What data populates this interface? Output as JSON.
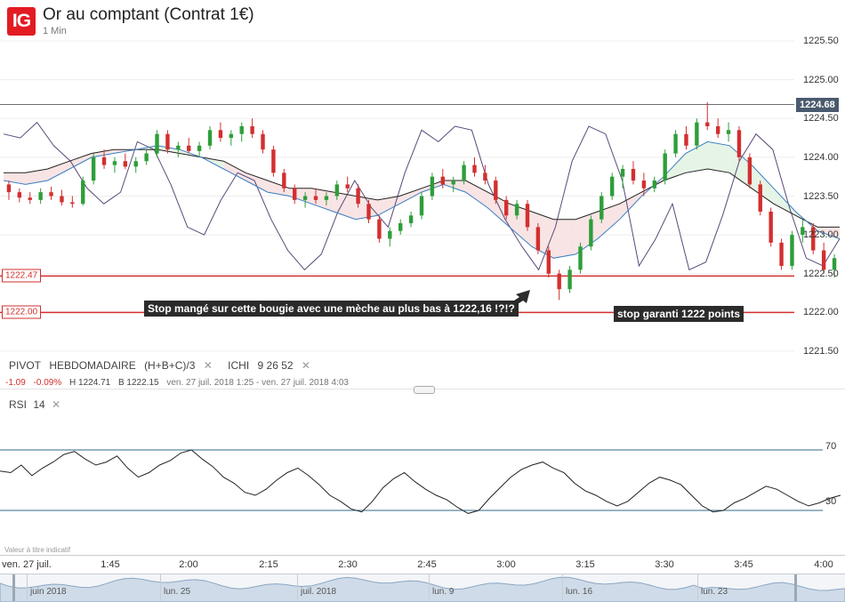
{
  "header": {
    "logo": "IG",
    "title": "Or au comptant (Contrat 1€)",
    "interval": "1 Min"
  },
  "price_axis": {
    "ticks": [
      {
        "label": "1225.50",
        "value": 1225.5
      },
      {
        "label": "1225.00",
        "value": 1225.0
      },
      {
        "label": "1224.50",
        "value": 1224.5
      },
      {
        "label": "1224.00",
        "value": 1224.0
      },
      {
        "label": "1223.50",
        "value": 1223.5
      },
      {
        "label": "1223.00",
        "value": 1223.0
      },
      {
        "label": "1222.50",
        "value": 1222.5
      },
      {
        "label": "1222.00",
        "value": 1222.0
      },
      {
        "label": "1221.50",
        "value": 1221.5
      }
    ],
    "current_price": "1224.68",
    "current_value": 1224.68
  },
  "levels": [
    {
      "label": "1222.47",
      "value": 1222.47,
      "color": "#d32f2f"
    },
    {
      "label": "1222.00",
      "value": 1222.0,
      "color": "#d32f2f"
    }
  ],
  "annotations": {
    "stop_note": "Stop mangé sur cette bougie avec une mèche au plus bas à 1222,16 !?!?",
    "guaranteed_note": "stop garanti 1222 points"
  },
  "indicators": {
    "pivot_label": "PIVOT",
    "pivot_period": "HEBDOMADAIRE",
    "pivot_formula": "(H+B+C)/3",
    "ichi_label": "ICHI",
    "ichi_params": "9 26 52",
    "close_glyph": "✕"
  },
  "ohlc": {
    "change": "-1.09",
    "change_pct": "-0.09%",
    "high": "H 1224.71",
    "low": "B 1222.15",
    "range": "ven. 27 juil. 2018 1:25 - ven. 27 juil. 2018 4:03"
  },
  "rsi": {
    "label": "RSI",
    "period": "14",
    "upper": "70",
    "lower": "30"
  },
  "disclaimer": "Valeur à titre indicatif",
  "time_axis": [
    {
      "label": "ven. 27 juil.",
      "x": "1:25"
    },
    {
      "label": "1:45",
      "x": "1:45"
    },
    {
      "label": "2:00",
      "x": "2:00"
    },
    {
      "label": "2:15",
      "x": "2:15"
    },
    {
      "label": "2:30",
      "x": "2:30"
    },
    {
      "label": "2:45",
      "x": "2:45"
    },
    {
      "label": "3:00",
      "x": "3:00"
    },
    {
      "label": "3:15",
      "x": "3:15"
    },
    {
      "label": "3:30",
      "x": "3:30"
    },
    {
      "label": "3:45",
      "x": "3:45"
    },
    {
      "label": "4:00",
      "x": "4:00"
    }
  ],
  "navigator": [
    {
      "label": "juin 2018"
    },
    {
      "label": "lun. 25"
    },
    {
      "label": "juil. 2018"
    },
    {
      "label": "lun. 9"
    },
    {
      "label": "lun. 16"
    },
    {
      "label": "lun. 23"
    }
  ],
  "colors": {
    "up": "#2e9e3a",
    "down": "#d32f2f",
    "ichi_conversion": "#3a7fc1",
    "ichi_base": "#222222",
    "ichi_lagging": "#5a4a7a",
    "cloud_bull": "#e6f4e6",
    "cloud_bear": "#f8e4e4",
    "rsi_line": "#222222",
    "rsi_band": "#2f6a8a"
  },
  "chart_data": {
    "type": "candlestick",
    "series": [
      {
        "name": "Or au comptant",
        "ohlc": [
          [
            1223.65,
            1223.7,
            1223.45,
            1223.55
          ],
          [
            1223.55,
            1223.6,
            1223.42,
            1223.48
          ],
          [
            1223.48,
            1223.55,
            1223.4,
            1223.45
          ],
          [
            1223.45,
            1223.6,
            1223.4,
            1223.55
          ],
          [
            1223.55,
            1223.62,
            1223.45,
            1223.5
          ],
          [
            1223.5,
            1223.58,
            1223.38,
            1223.42
          ],
          [
            1223.42,
            1223.5,
            1223.35,
            1223.4
          ],
          [
            1223.4,
            1223.75,
            1223.38,
            1223.7
          ],
          [
            1223.7,
            1224.05,
            1223.65,
            1224.0
          ],
          [
            1224.0,
            1224.1,
            1223.85,
            1223.9
          ],
          [
            1223.9,
            1224.0,
            1223.8,
            1223.95
          ],
          [
            1223.95,
            1224.05,
            1223.85,
            1223.88
          ],
          [
            1223.88,
            1224.0,
            1223.8,
            1223.95
          ],
          [
            1223.95,
            1224.1,
            1223.9,
            1224.05
          ],
          [
            1224.05,
            1224.35,
            1224.0,
            1224.3
          ],
          [
            1224.3,
            1224.35,
            1224.05,
            1224.1
          ],
          [
            1224.1,
            1224.2,
            1224.0,
            1224.15
          ],
          [
            1224.15,
            1224.25,
            1224.05,
            1224.08
          ],
          [
            1224.08,
            1224.2,
            1224.0,
            1224.15
          ],
          [
            1224.15,
            1224.4,
            1224.1,
            1224.35
          ],
          [
            1224.35,
            1224.45,
            1224.2,
            1224.25
          ],
          [
            1224.25,
            1224.35,
            1224.15,
            1224.3
          ],
          [
            1224.3,
            1224.45,
            1224.2,
            1224.4
          ],
          [
            1224.4,
            1224.5,
            1224.25,
            1224.3
          ],
          [
            1224.3,
            1224.35,
            1224.05,
            1224.1
          ],
          [
            1224.1,
            1224.15,
            1223.75,
            1223.8
          ],
          [
            1223.8,
            1223.85,
            1223.55,
            1223.6
          ],
          [
            1223.6,
            1223.65,
            1223.4,
            1223.45
          ],
          [
            1223.45,
            1223.55,
            1223.35,
            1223.5
          ],
          [
            1223.5,
            1223.6,
            1223.4,
            1223.45
          ],
          [
            1223.45,
            1223.55,
            1223.38,
            1223.5
          ],
          [
            1223.5,
            1223.7,
            1223.45,
            1223.65
          ],
          [
            1223.65,
            1223.75,
            1223.55,
            1223.6
          ],
          [
            1223.6,
            1223.65,
            1223.35,
            1223.4
          ],
          [
            1223.4,
            1223.45,
            1223.15,
            1223.2
          ],
          [
            1223.2,
            1223.25,
            1222.9,
            1222.95
          ],
          [
            1222.95,
            1223.1,
            1222.85,
            1223.05
          ],
          [
            1223.05,
            1223.2,
            1223.0,
            1223.15
          ],
          [
            1223.15,
            1223.3,
            1223.1,
            1223.25
          ],
          [
            1223.25,
            1223.55,
            1223.2,
            1223.5
          ],
          [
            1223.5,
            1223.8,
            1223.45,
            1223.75
          ],
          [
            1223.75,
            1223.85,
            1223.6,
            1223.65
          ],
          [
            1223.65,
            1223.75,
            1223.55,
            1223.7
          ],
          [
            1223.7,
            1223.95,
            1223.65,
            1223.9
          ],
          [
            1223.9,
            1224.0,
            1223.75,
            1223.8
          ],
          [
            1223.8,
            1223.9,
            1223.65,
            1223.7
          ],
          [
            1223.7,
            1223.75,
            1223.4,
            1223.45
          ],
          [
            1223.45,
            1223.5,
            1223.2,
            1223.25
          ],
          [
            1223.25,
            1223.45,
            1223.2,
            1223.4
          ],
          [
            1223.4,
            1223.45,
            1223.05,
            1223.1
          ],
          [
            1223.1,
            1223.15,
            1222.75,
            1222.8
          ],
          [
            1222.8,
            1222.85,
            1222.45,
            1222.5
          ],
          [
            1222.5,
            1222.55,
            1222.16,
            1222.3
          ],
          [
            1222.3,
            1222.6,
            1222.25,
            1222.55
          ],
          [
            1222.55,
            1222.9,
            1222.5,
            1222.85
          ],
          [
            1222.85,
            1223.25,
            1222.8,
            1223.2
          ],
          [
            1223.2,
            1223.55,
            1223.15,
            1223.5
          ],
          [
            1223.5,
            1223.8,
            1223.45,
            1223.75
          ],
          [
            1223.75,
            1223.9,
            1223.6,
            1223.85
          ],
          [
            1223.85,
            1223.95,
            1223.65,
            1223.7
          ],
          [
            1223.7,
            1223.8,
            1223.5,
            1223.6
          ],
          [
            1223.6,
            1223.75,
            1223.55,
            1223.7
          ],
          [
            1223.7,
            1224.1,
            1223.65,
            1224.05
          ],
          [
            1224.05,
            1224.35,
            1224.0,
            1224.3
          ],
          [
            1224.3,
            1224.4,
            1224.1,
            1224.15
          ],
          [
            1224.15,
            1224.5,
            1224.1,
            1224.45
          ],
          [
            1224.45,
            1224.71,
            1224.35,
            1224.4
          ],
          [
            1224.4,
            1224.5,
            1224.25,
            1224.3
          ],
          [
            1224.3,
            1224.45,
            1224.2,
            1224.35
          ],
          [
            1224.35,
            1224.4,
            1223.95,
            1224.0
          ],
          [
            1224.0,
            1224.05,
            1223.6,
            1223.65
          ],
          [
            1223.65,
            1223.7,
            1223.25,
            1223.3
          ],
          [
            1223.3,
            1223.35,
            1222.85,
            1222.9
          ],
          [
            1222.9,
            1222.95,
            1222.55,
            1222.6
          ],
          [
            1222.6,
            1223.05,
            1222.55,
            1223.0
          ],
          [
            1223.0,
            1223.2,
            1222.9,
            1223.1
          ],
          [
            1223.1,
            1223.15,
            1222.75,
            1222.8
          ],
          [
            1222.8,
            1222.9,
            1222.5,
            1222.55
          ],
          [
            1222.55,
            1222.75,
            1222.45,
            1222.7
          ]
        ]
      }
    ],
    "ichimoku": {
      "conversion": [
        1223.7,
        1223.65,
        1223.7,
        1223.85,
        1224.0,
        1224.05,
        1224.1,
        1224.15,
        1224.1,
        1224.0,
        1223.85,
        1223.7,
        1223.55,
        1223.5,
        1223.4,
        1223.3,
        1223.2,
        1223.25,
        1223.4,
        1223.55,
        1223.65,
        1223.55,
        1223.35,
        1223.1,
        1222.85,
        1222.7,
        1222.75,
        1222.95,
        1223.2,
        1223.5,
        1223.75,
        1224.05,
        1224.2,
        1224.15,
        1223.9,
        1223.6,
        1223.3,
        1223.05,
        1222.95
      ],
      "base": [
        1223.8,
        1223.8,
        1223.85,
        1223.95,
        1224.05,
        1224.1,
        1224.1,
        1224.1,
        1224.05,
        1224.0,
        1223.95,
        1223.8,
        1223.7,
        1223.6,
        1223.6,
        1223.55,
        1223.5,
        1223.45,
        1223.5,
        1223.6,
        1223.7,
        1223.7,
        1223.55,
        1223.4,
        1223.3,
        1223.2,
        1223.2,
        1223.3,
        1223.4,
        1223.55,
        1223.7,
        1223.8,
        1223.85,
        1223.8,
        1223.6,
        1223.4,
        1223.25,
        1223.1,
        1223.1
      ],
      "lagging": [
        1224.3,
        1224.25,
        1224.45,
        1224.15,
        1223.95,
        1223.6,
        1223.4,
        1223.55,
        1224.2,
        1224.1,
        1223.65,
        1223.1,
        1223.0,
        1223.45,
        1223.8,
        1223.7,
        1223.2,
        1222.8,
        1222.55,
        1222.75,
        1223.3,
        1223.7,
        1223.35,
        1223.1,
        1223.8,
        1224.35,
        1224.2,
        1224.4,
        1224.35,
        1223.65,
        1223.2,
        1222.85,
        1222.55,
        1223.1,
        1223.95,
        1224.4,
        1224.3,
        1223.7,
        1222.6,
        1222.95,
        1223.4,
        1222.55,
        1222.65,
        1223.25,
        1223.95,
        1224.3,
        1224.1,
        1223.35,
        1222.7,
        1222.6,
        1222.95
      ]
    },
    "rsi": [
      56,
      55,
      60,
      53,
      58,
      62,
      67,
      69,
      64,
      60,
      62,
      66,
      58,
      52,
      55,
      60,
      63,
      68,
      70,
      64,
      59,
      52,
      48,
      42,
      40,
      44,
      50,
      55,
      58,
      53,
      47,
      40,
      36,
      31,
      29,
      36,
      45,
      51,
      55,
      49,
      44,
      40,
      37,
      32,
      28,
      30,
      38,
      45,
      52,
      57,
      60,
      62,
      58,
      55,
      48,
      43,
      40,
      36,
      33,
      36,
      42,
      48,
      52,
      50,
      47,
      40,
      33,
      29,
      30,
      35,
      38,
      42,
      46,
      44,
      40,
      36,
      33,
      35,
      38,
      40
    ],
    "rsi_levels": [
      70,
      30
    ],
    "ylim": [
      1221.35,
      1225.7
    ]
  }
}
